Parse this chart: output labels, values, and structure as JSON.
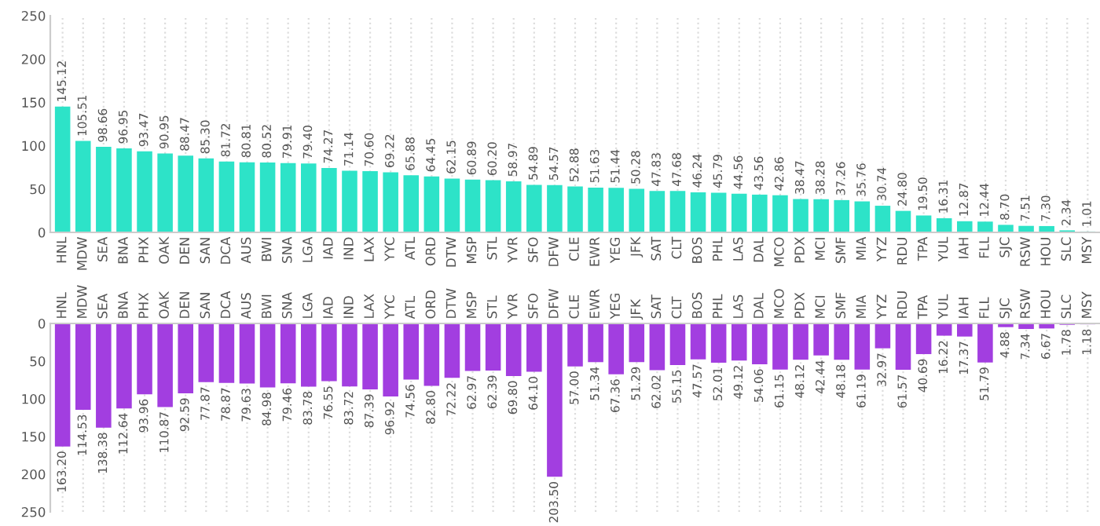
{
  "chart_data": [
    {
      "type": "bar",
      "categories": [
        "HNL",
        "MDW",
        "SEA",
        "BNA",
        "PHX",
        "OAK",
        "DEN",
        "SAN",
        "DCA",
        "AUS",
        "BWI",
        "SNA",
        "LGA",
        "IAD",
        "IND",
        "LAX",
        "YYC",
        "ATL",
        "ORD",
        "DTW",
        "MSP",
        "STL",
        "YVR",
        "SFO",
        "DFW",
        "CLE",
        "EWR",
        "YEG",
        "JFK",
        "SAT",
        "CLT",
        "BOS",
        "PHL",
        "LAS",
        "DAL",
        "MCO",
        "PDX",
        "MCI",
        "SMF",
        "MIA",
        "YYZ",
        "RDU",
        "TPA",
        "YUL",
        "IAH",
        "FLL",
        "SJC",
        "RSW",
        "HOU",
        "SLC",
        "MSY"
      ],
      "values": [
        145.12,
        105.51,
        98.66,
        96.95,
        93.47,
        90.95,
        88.47,
        85.3,
        81.72,
        80.81,
        80.52,
        79.91,
        79.4,
        74.27,
        71.14,
        70.6,
        69.22,
        65.88,
        64.45,
        62.15,
        60.89,
        60.2,
        58.97,
        54.89,
        54.57,
        52.88,
        51.63,
        51.44,
        50.28,
        47.83,
        47.68,
        46.24,
        45.79,
        44.56,
        43.56,
        42.86,
        38.47,
        38.28,
        37.26,
        35.76,
        30.74,
        24.8,
        19.5,
        16.31,
        12.87,
        12.44,
        8.7,
        7.51,
        7.3,
        2.34,
        1.01
      ],
      "value_labels": [
        "145.12",
        "105.51",
        "98.66",
        "96.95",
        "93.47",
        "90.95",
        "88.47",
        "85.30",
        "81.72",
        "80.81",
        "80.52",
        "79.91",
        "79.40",
        "74.27",
        "71.14",
        "70.60",
        "69.22",
        "65.88",
        "64.45",
        "62.15",
        "60.89",
        "60.20",
        "58.97",
        "54.89",
        "54.57",
        "52.88",
        "51.63",
        "51.44",
        "50.28",
        "47.83",
        "47.68",
        "46.24",
        "45.79",
        "44.56",
        "43.56",
        "42.86",
        "38.47",
        "38.28",
        "37.26",
        "35.76",
        "30.74",
        "24.80",
        "19.50",
        "16.31",
        "12.87",
        "12.44",
        "8.70",
        "7.51",
        "7.30",
        "2.34",
        "1.01"
      ],
      "color": "#2de3c8",
      "ylim": [
        0,
        250
      ],
      "yticks": [
        0,
        50,
        100,
        150,
        200,
        250
      ],
      "grid": "x"
    },
    {
      "type": "bar",
      "categories": [
        "HNL",
        "MDW",
        "SEA",
        "BNA",
        "PHX",
        "OAK",
        "DEN",
        "SAN",
        "DCA",
        "AUS",
        "BWI",
        "SNA",
        "LGA",
        "IAD",
        "IND",
        "LAX",
        "YYC",
        "ATL",
        "ORD",
        "DTW",
        "MSP",
        "STL",
        "YVR",
        "SFO",
        "DFW",
        "CLE",
        "EWR",
        "YEG",
        "JFK",
        "SAT",
        "CLT",
        "BOS",
        "PHL",
        "LAS",
        "DAL",
        "MCO",
        "PDX",
        "MCI",
        "SMF",
        "MIA",
        "YYZ",
        "RDU",
        "TPA",
        "YUL",
        "IAH",
        "FLL",
        "SJC",
        "RSW",
        "HOU",
        "SLC",
        "MSY"
      ],
      "values": [
        163.2,
        114.53,
        138.38,
        112.64,
        93.96,
        110.87,
        92.59,
        77.87,
        78.87,
        79.63,
        84.98,
        79.46,
        83.78,
        76.55,
        83.72,
        87.39,
        96.92,
        74.56,
        82.8,
        72.22,
        62.97,
        62.39,
        69.8,
        64.1,
        203.5,
        57.0,
        51.34,
        67.36,
        51.29,
        62.02,
        55.15,
        47.57,
        52.01,
        49.12,
        54.06,
        61.15,
        48.12,
        42.44,
        48.18,
        61.19,
        32.97,
        61.57,
        40.69,
        16.22,
        17.37,
        51.79,
        4.88,
        7.34,
        6.67,
        1.78,
        1.18
      ],
      "value_labels": [
        "163.20",
        "114.53",
        "138.38",
        "112.64",
        "93.96",
        "110.87",
        "92.59",
        "77.87",
        "78.87",
        "79.63",
        "84.98",
        "79.46",
        "83.78",
        "76.55",
        "83.72",
        "87.39",
        "96.92",
        "74.56",
        "82.80",
        "72.22",
        "62.97",
        "62.39",
        "69.80",
        "64.10",
        "203.50",
        "57.00",
        "51.34",
        "67.36",
        "51.29",
        "62.02",
        "55.15",
        "47.57",
        "52.01",
        "49.12",
        "54.06",
        "61.15",
        "48.12",
        "42.44",
        "48.18",
        "61.19",
        "32.97",
        "61.57",
        "40.69",
        "16.22",
        "17.37",
        "51.79",
        "4.88",
        "7.34",
        "6.67",
        "1.78",
        "1.18"
      ],
      "color": "#a23ee0",
      "ylim": [
        250,
        0
      ],
      "yticks": [
        0,
        50,
        100,
        150,
        200,
        250
      ],
      "grid": "x"
    }
  ]
}
